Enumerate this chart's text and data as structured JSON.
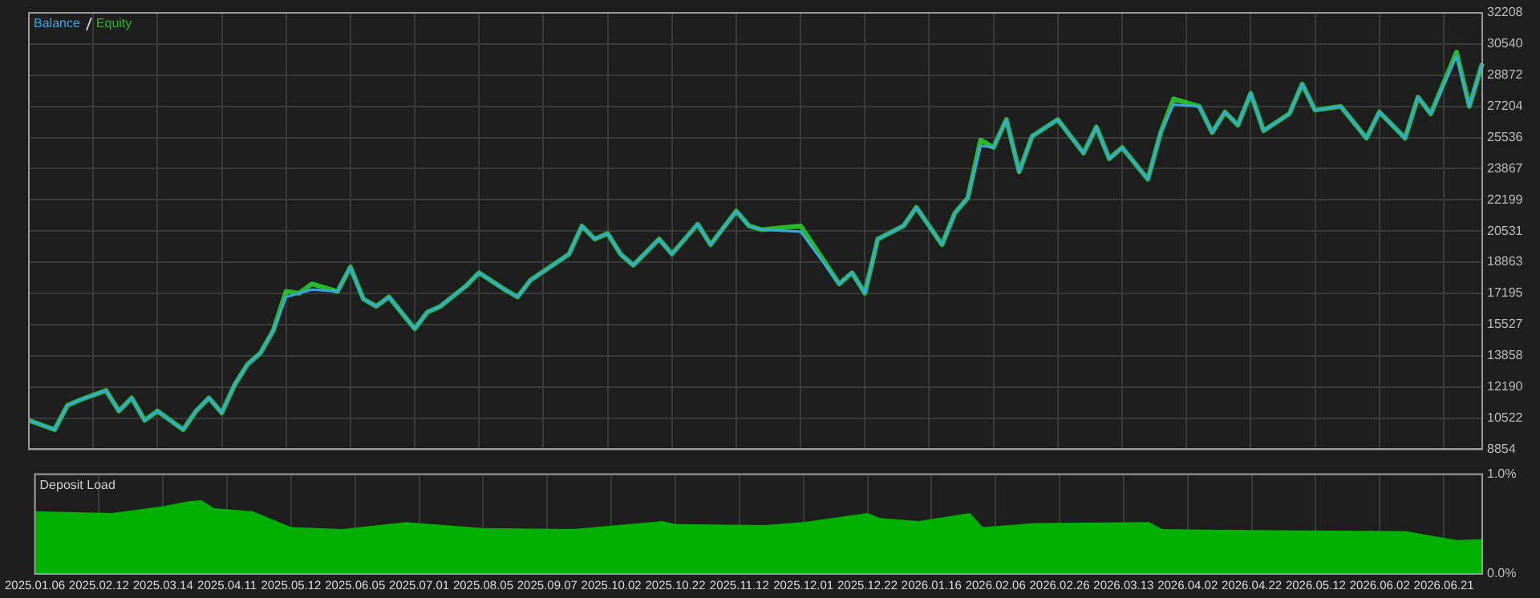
{
  "chart_data": [
    {
      "type": "line",
      "legend": "top left",
      "grid": true,
      "tick_labels": "y",
      "categories": [
        "2025.01.06",
        null,
        null,
        null,
        null,
        "2025.02.12",
        null,
        null,
        null,
        null,
        "2025.03.14",
        null,
        null,
        null,
        null,
        "2025.04.11",
        null,
        null,
        null,
        null,
        "2025.05.12",
        null,
        null,
        null,
        null,
        "2025.06.05",
        null,
        null,
        null,
        null,
        "2025.07.01",
        null,
        null,
        null,
        null,
        "2025.08.05",
        null,
        null,
        null,
        null,
        "2025.09.07",
        null,
        null,
        null,
        null,
        "2025.10.02",
        null,
        null,
        null,
        null,
        "2025.10.22",
        null,
        null,
        null,
        null,
        "2025.11.12",
        null,
        null,
        null,
        null,
        "2025.12.01",
        null,
        null,
        null,
        null,
        "2025.12.22",
        null,
        null,
        null,
        null,
        "2026.01.16",
        null,
        null,
        null,
        null,
        "2026.02.06",
        null,
        null,
        null,
        null,
        "2026.02.26",
        null,
        null,
        null,
        null,
        "2026.03.13",
        null,
        null,
        null,
        null,
        "2026.04.02",
        null,
        null,
        null,
        null,
        "2026.04.22",
        null,
        null,
        null,
        null,
        "2026.05.12",
        null,
        null,
        null,
        null,
        "2026.06.02",
        null,
        null,
        null,
        null,
        "2026.06.21",
        null,
        null,
        null
      ],
      "series": [
        {
          "name": "Balance",
          "color": "#3aa6e6",
          "values": [
            10400,
            null,
            9900,
            11200,
            11500,
            null,
            12000,
            10900,
            11600,
            10400,
            10900,
            null,
            9900,
            10900,
            11600,
            10800,
            12300,
            13400,
            14000,
            15200,
            17000,
            17200,
            17400,
            null,
            17300,
            18600,
            16900,
            16500,
            17000,
            null,
            15300,
            16200,
            16500,
            null,
            17600,
            18300,
            null,
            17400,
            17000,
            17900,
            null,
            null,
            19300,
            20800,
            20100,
            20400,
            19300,
            18700,
            null,
            20100,
            19300,
            null,
            20900,
            19800,
            null,
            21600,
            20800,
            20600,
            null,
            null,
            20500,
            null,
            null,
            17700,
            18300,
            17200,
            20100,
            null,
            20800,
            21800,
            null,
            19800,
            21500,
            22300,
            25100,
            25000,
            26500,
            23700,
            25600,
            null,
            26500,
            null,
            24700,
            26100,
            24400,
            25000,
            null,
            23300,
            25800,
            27300,
            null,
            27200,
            25800,
            26900,
            26200,
            27900,
            25900,
            null,
            26800,
            28400,
            27000,
            null,
            27200,
            null,
            25500,
            26900,
            null,
            25500,
            27700,
            26800,
            null,
            29900,
            27200,
            29500
          ]
        },
        {
          "name": "Equity",
          "color": "#27b927",
          "values": [
            10400,
            null,
            9900,
            11200,
            11500,
            null,
            12000,
            10900,
            11600,
            10400,
            10900,
            null,
            9900,
            10900,
            11600,
            10800,
            12300,
            13400,
            14000,
            15200,
            17300,
            17200,
            17700,
            null,
            17300,
            18600,
            16900,
            16500,
            17000,
            null,
            15300,
            16200,
            16500,
            null,
            17600,
            18300,
            null,
            17400,
            17000,
            17900,
            null,
            null,
            19300,
            20800,
            20100,
            20400,
            19300,
            18700,
            null,
            20100,
            19300,
            null,
            20900,
            19800,
            null,
            21600,
            20800,
            20600,
            null,
            null,
            20800,
            null,
            null,
            17700,
            18300,
            17200,
            20100,
            null,
            20800,
            21800,
            null,
            19800,
            21500,
            22300,
            25400,
            25000,
            26500,
            23700,
            25600,
            null,
            26500,
            null,
            24700,
            26100,
            24400,
            25000,
            null,
            23300,
            25800,
            27600,
            null,
            27200,
            25800,
            26900,
            26200,
            27900,
            25900,
            null,
            26800,
            28400,
            27000,
            null,
            27200,
            null,
            25500,
            26900,
            null,
            25500,
            27700,
            26800,
            null,
            30100,
            27200,
            29500
          ]
        }
      ],
      "ylim": [
        8854,
        32208
      ],
      "yticks": [
        8854,
        10522,
        12190,
        13858,
        15527,
        17195,
        18863,
        20531,
        22199,
        23867,
        25536,
        27204,
        28872,
        30540,
        32208
      ]
    },
    {
      "type": "area",
      "title": "Deposit Load",
      "grid": true,
      "color": "#00b000",
      "categories": [
        "2025.01.06",
        null,
        null,
        null,
        null,
        "2025.02.12",
        null,
        null,
        null,
        null,
        "2025.03.14",
        null,
        null,
        null,
        null,
        "2025.04.11",
        null,
        null,
        null,
        null,
        "2025.05.12",
        null,
        null,
        null,
        null,
        "2025.06.05",
        null,
        null,
        null,
        null,
        "2025.07.01",
        null,
        null,
        null,
        null,
        "2025.08.05",
        null,
        null,
        null,
        null,
        "2025.09.07",
        null,
        null,
        null,
        null,
        "2025.10.02",
        null,
        null,
        null,
        null,
        "2025.10.22",
        null,
        null,
        null,
        null,
        "2025.11.12",
        null,
        null,
        null,
        null,
        "2025.12.01",
        null,
        null,
        null,
        null,
        "2025.12.22",
        null,
        null,
        null,
        null,
        "2026.01.16",
        null,
        null,
        null,
        null,
        "2026.02.06",
        null,
        null,
        null,
        null,
        "2026.02.26",
        null,
        null,
        null,
        null,
        "2026.03.13",
        null,
        null,
        null,
        null,
        "2026.04.02",
        null,
        null,
        null,
        null,
        "2026.04.22",
        null,
        null,
        null,
        null,
        "2026.05.12",
        null,
        null,
        null,
        null,
        "2026.06.02",
        null,
        null,
        null,
        null,
        "2026.06.21",
        null,
        null,
        null
      ],
      "values": [
        0.63,
        null,
        null,
        null,
        null,
        null,
        0.61,
        null,
        null,
        null,
        0.68,
        null,
        0.73,
        0.74,
        0.66,
        null,
        null,
        0.63,
        null,
        null,
        0.47,
        null,
        null,
        null,
        0.45,
        null,
        null,
        null,
        null,
        0.52,
        null,
        null,
        null,
        null,
        null,
        0.46,
        null,
        null,
        null,
        null,
        null,
        null,
        0.45,
        null,
        null,
        null,
        null,
        null,
        null,
        0.53,
        0.5,
        null,
        null,
        null,
        null,
        null,
        null,
        0.49,
        null,
        null,
        0.52,
        null,
        null,
        null,
        null,
        0.61,
        0.56,
        null,
        null,
        0.53,
        null,
        null,
        null,
        0.61,
        0.47,
        null,
        null,
        null,
        0.51,
        null,
        null,
        null,
        null,
        null,
        null,
        null,
        null,
        0.52,
        0.45,
        null,
        null,
        null,
        null,
        null,
        null,
        0.44,
        null,
        null,
        null,
        null,
        null,
        null,
        null,
        null,
        null,
        null,
        null,
        0.43,
        null,
        null,
        null,
        0.34,
        null,
        0.35
      ],
      "ylim": [
        0,
        1
      ],
      "yticks": [
        {
          "value": 0,
          "label": "0.0%"
        },
        {
          "value": 1,
          "label": "1.0%"
        }
      ]
    }
  ]
}
